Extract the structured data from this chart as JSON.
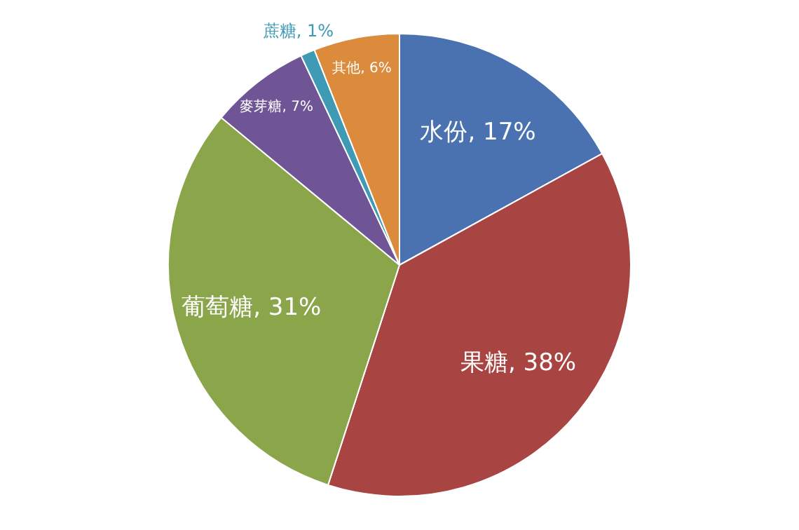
{
  "chart_data": {
    "type": "pie",
    "categories": [
      "水份",
      "果糖",
      "葡萄糖",
      "麥芽糖",
      "蔗糖",
      "其他"
    ],
    "values": [
      17,
      38,
      31,
      7,
      1,
      6
    ],
    "value_labels": [
      "17%",
      "38%",
      "31%",
      "7%",
      "1%",
      "6%"
    ],
    "colors": [
      "#4a72b0",
      "#a84441",
      "#8aa54a",
      "#6f5596",
      "#3f9bb5",
      "#dc8a3c"
    ]
  }
}
